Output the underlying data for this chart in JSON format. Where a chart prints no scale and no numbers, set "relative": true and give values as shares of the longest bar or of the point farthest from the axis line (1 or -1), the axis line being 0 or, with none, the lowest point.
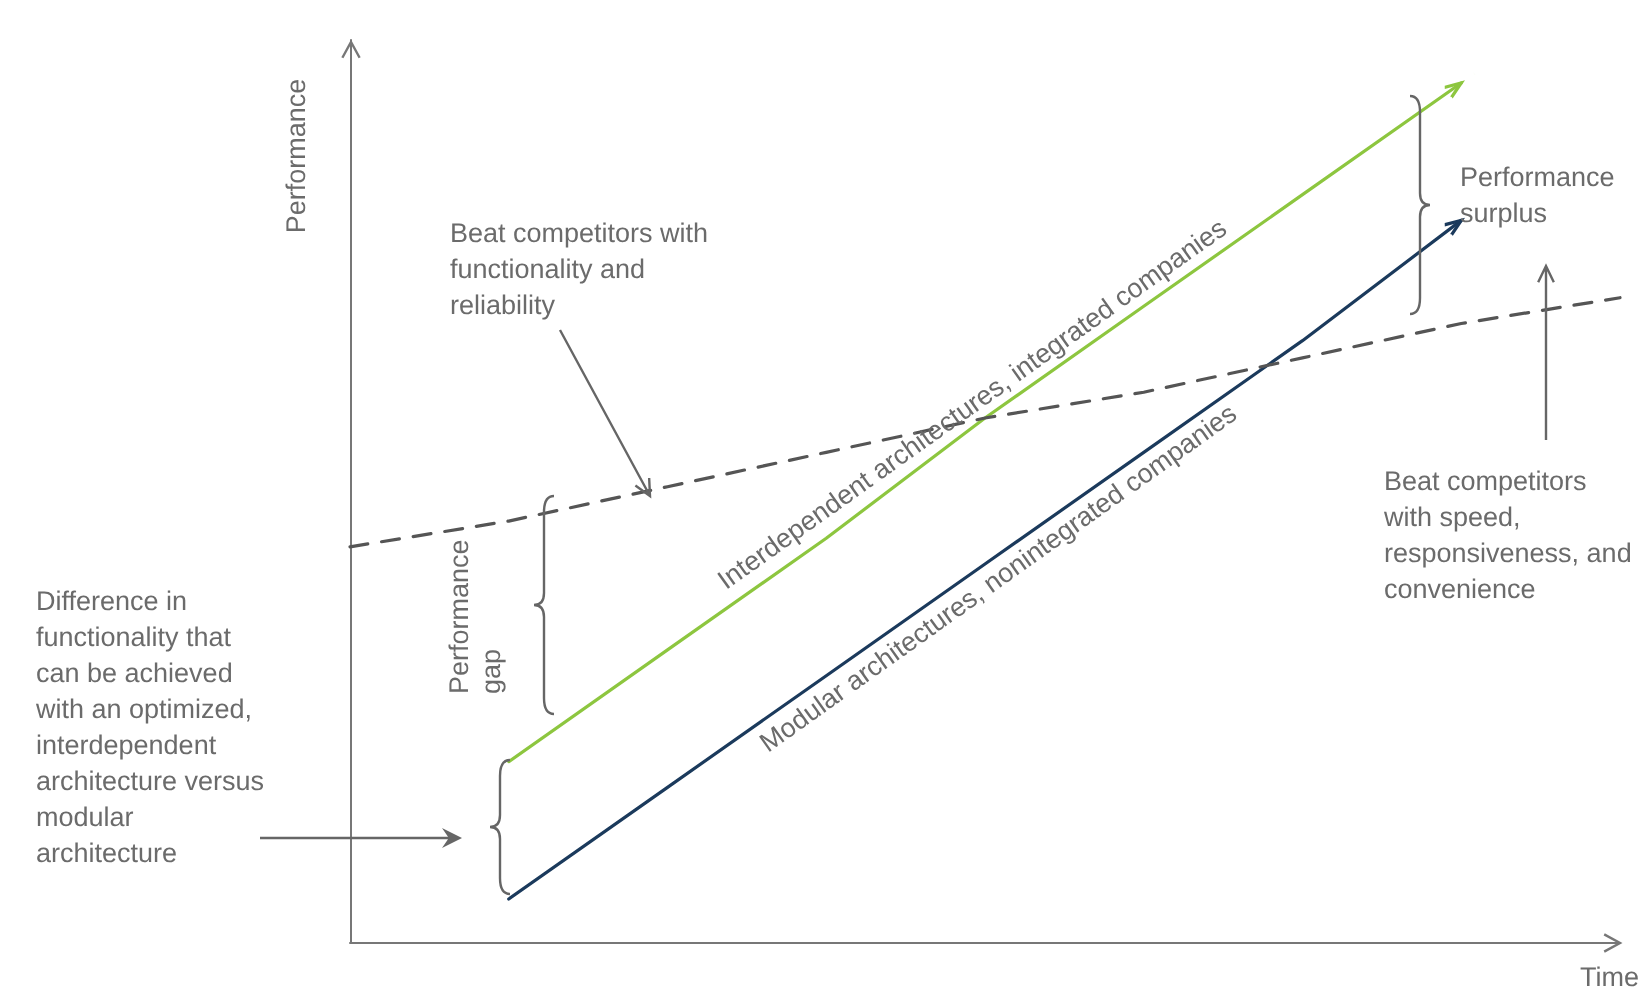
{
  "chart_data": {
    "type": "line",
    "relative": true,
    "xlabel": "Time",
    "ylabel": "Performance",
    "marker": "none",
    "categories": [
      null,
      null,
      null,
      null,
      null,
      null,
      null,
      null,
      null
    ],
    "series": [
      {
        "name": "Interdependent architectures, integrated companies",
        "color": "#8dc63f",
        "values": [
          null,
          0.21,
          0.34,
          0.47,
          0.61,
          0.74,
          0.87,
          1.0,
          null
        ]
      },
      {
        "name": "Modular architectures, nonintegrated companies",
        "color": "#1b3a5c",
        "values": [
          null,
          0.05,
          0.18,
          0.31,
          0.44,
          0.57,
          0.7,
          0.84,
          null
        ]
      },
      {
        "color": "#555555",
        "line_style": "dashed",
        "values": [
          0.46,
          0.49,
          0.53,
          0.57,
          0.61,
          0.64,
          0.68,
          0.72,
          0.75
        ]
      }
    ],
    "annotations": [
      "Beat competitors with functionality and reliability",
      "Performance surplus",
      "Beat competitors with speed, responsiveness, and convenience",
      "Performance gap",
      "Difference in functionality that can be achieved with an optimized, interdependent architecture versus modular architecture"
    ]
  }
}
